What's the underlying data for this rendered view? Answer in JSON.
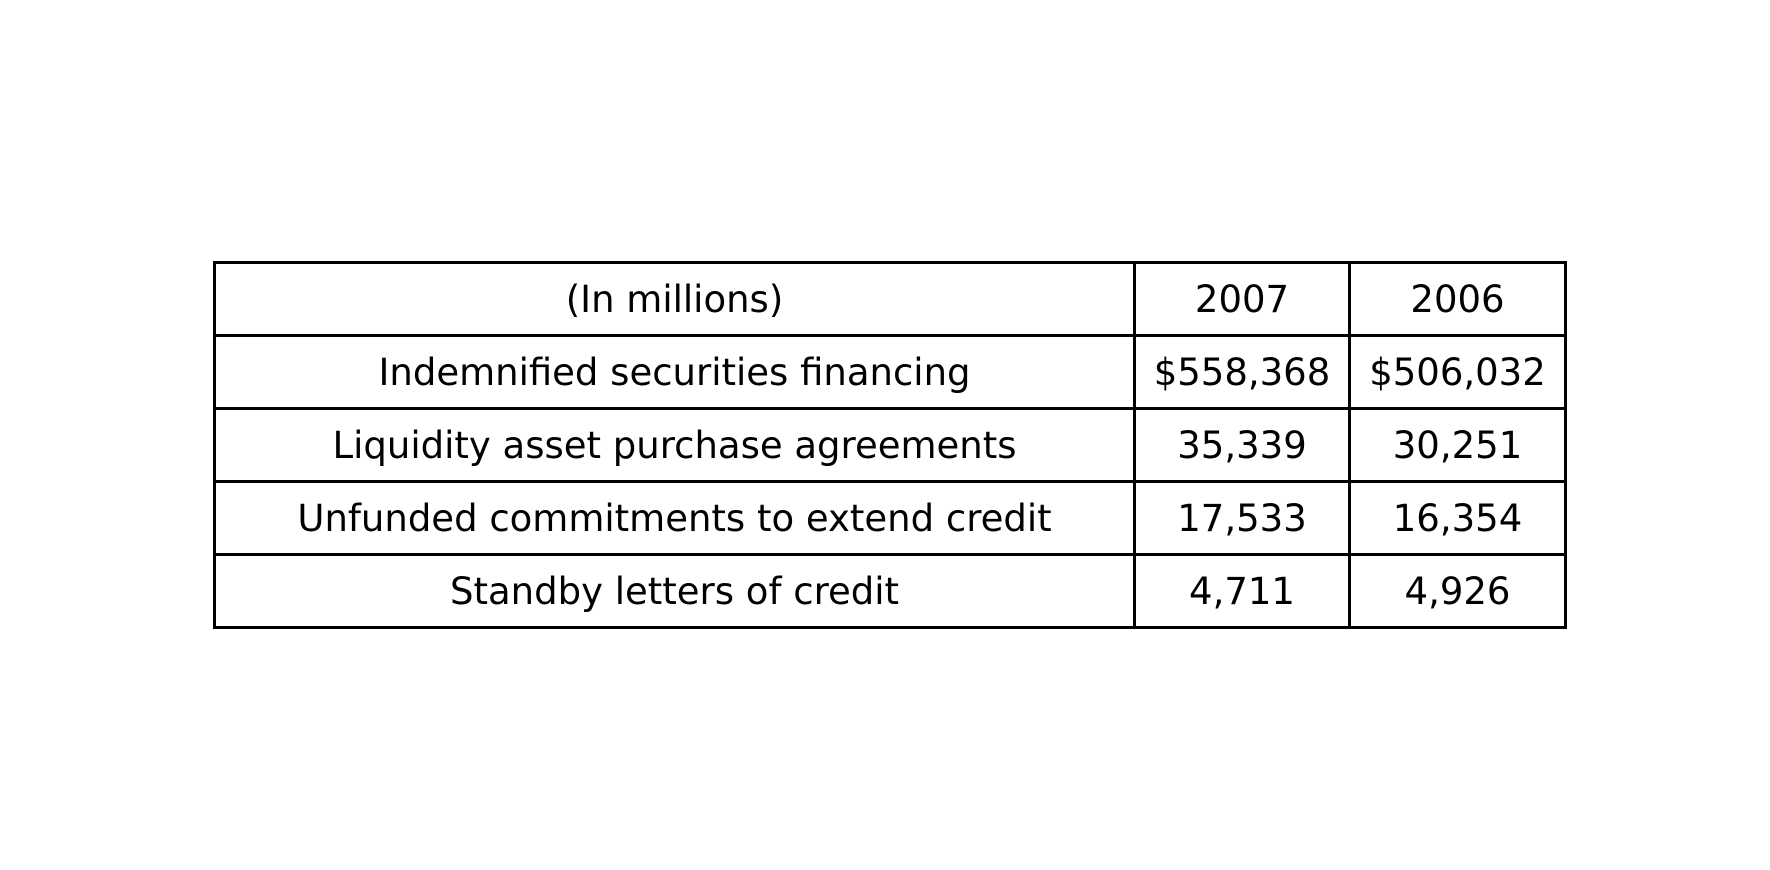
{
  "table": {
    "header": {
      "label": "(In millions)",
      "col_2007": "2007",
      "col_2006": "2006"
    },
    "rows": [
      {
        "label": "Indemnified securities financing",
        "v2007": "$558,368",
        "v2006": "$506,032"
      },
      {
        "label": "Liquidity asset purchase agreements",
        "v2007": "35,339",
        "v2006": "30,251"
      },
      {
        "label": "Unfunded commitments to extend credit",
        "v2007": "17,533",
        "v2006": "16,354"
      },
      {
        "label": "Standby letters of credit",
        "v2007": "4,711",
        "v2006": "4,926"
      }
    ]
  }
}
